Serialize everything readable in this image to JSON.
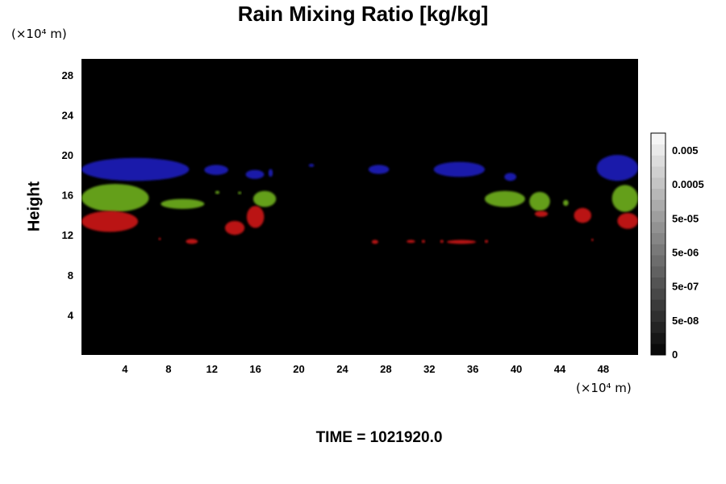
{
  "chart_data": {
    "type": "heatmap",
    "title": "Rain Mixing Ratio [kg/kg]",
    "ylabel": "Height",
    "x_unit": "(×10⁴ m)",
    "y_unit": "(×10⁴ m)",
    "xlim": [
      0,
      51.2
    ],
    "ylim": [
      0,
      29.6
    ],
    "x_ticks": [
      4,
      8,
      12,
      16,
      20,
      24,
      28,
      32,
      36,
      40,
      44,
      48
    ],
    "y_ticks": [
      4,
      8,
      12,
      16,
      20,
      24,
      28
    ],
    "colorbar": {
      "tick_labels": [
        "0",
        "5e-08",
        "5e-07",
        "5e-06",
        "5e-05",
        "0.0005",
        "0.005"
      ],
      "levels": 20,
      "colors": [
        "#000000",
        "#ffffff"
      ]
    },
    "background_color": "#000000",
    "feature_colors": {
      "blue": "#1a1ab4",
      "green": "#6aa81a",
      "red": "#c41414"
    },
    "footer": "TIME = 1021920.0"
  }
}
